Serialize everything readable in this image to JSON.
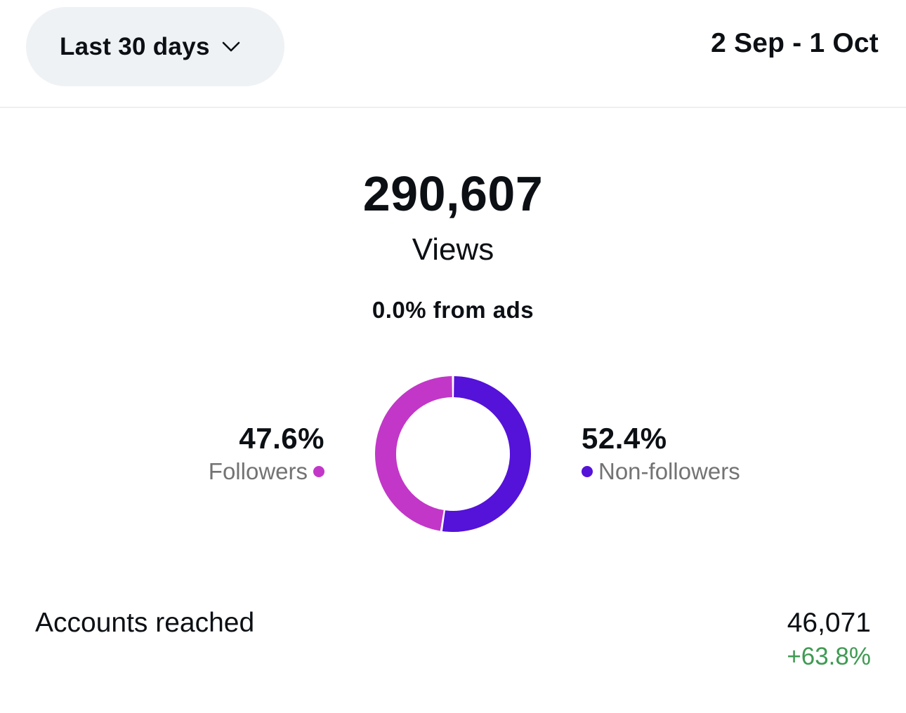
{
  "header": {
    "range_label": "Last 30 days",
    "date_range": "2 Sep - 1 Oct"
  },
  "summary": {
    "total_views": "290,607",
    "views_label": "Views",
    "ads_text": "0.0% from ads"
  },
  "breakdown": {
    "followers": {
      "percent": "47.6%",
      "label": "Followers",
      "value": 47.6,
      "color": "#c237c8"
    },
    "non_followers": {
      "percent": "52.4%",
      "label": "Non-followers",
      "value": 52.4,
      "color": "#5512d9"
    }
  },
  "accounts": {
    "label": "Accounts reached",
    "value": "46,071",
    "change": "+63.8%",
    "change_color": "#3f9a52"
  },
  "icons": {
    "range_chevron": "chevron-down-icon"
  }
}
